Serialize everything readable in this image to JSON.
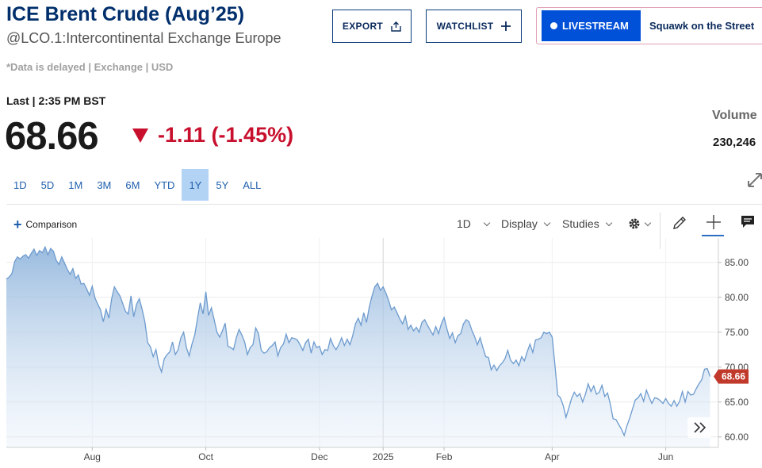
{
  "header": {
    "title": "ICE Brent Crude (Aug’25)",
    "subtitle": "@LCO.1:Intercontinental Exchange Europe",
    "delayed_note": "*Data is delayed | Exchange | USD"
  },
  "actions": {
    "export_label": "EXPORT",
    "watchlist_label": "WATCHLIST",
    "livestream_label": "LIVESTREAM",
    "livestream_show": "Squawk on the Street"
  },
  "quote": {
    "last_label": "Last | 2:35 PM BST",
    "price": "68.66",
    "change": "-1.11 (-1.45%)",
    "volume_label": "Volume",
    "volume_value": "230,246"
  },
  "ranges": [
    "1D",
    "5D",
    "1M",
    "3M",
    "6M",
    "YTD",
    "1Y",
    "5Y",
    "ALL"
  ],
  "active_range": "1Y",
  "toolbar": {
    "comparison_label": "Comparison",
    "interval_label": "1D",
    "display_label": "Display",
    "studies_label": "Studies"
  },
  "colors": {
    "brand_navy": "#002f6c",
    "negative": "#c8102e",
    "line": "#6d9bce",
    "price_tag": "#c0392b"
  },
  "icons": [
    "upload-icon",
    "plus-icon",
    "gear-icon",
    "pencil-icon",
    "crosshair-icon",
    "comment-icon",
    "expand-icon",
    "double-chevron-right-icon"
  ],
  "chart_data": {
    "type": "area",
    "x_tick_labels": [
      "Aug",
      "Oct",
      "Dec",
      "2025",
      "Feb",
      "Apr",
      "Jun"
    ],
    "y_ticks": [
      60,
      65,
      70,
      75,
      80,
      85
    ],
    "y_tick_labels": [
      "60.00",
      "65.00",
      "70.00",
      "75.00",
      "80.00",
      "85.00"
    ],
    "ylim": [
      58.5,
      88.5
    ],
    "xlim": [
      0,
      257
    ],
    "x_tick_positions": [
      31,
      72,
      113,
      136,
      158,
      197,
      238
    ],
    "last_value": 68.66,
    "last_value_label": "68.66",
    "grid": true,
    "series": [
      {
        "values": [
          82.6,
          82.9,
          83.4,
          85.1,
          85.8,
          85.5,
          85.9,
          86.1,
          85.6,
          86.3,
          86.9,
          86.0,
          86.7,
          86.4,
          87.2,
          86.1,
          87.0,
          86.6,
          85.3,
          84.7,
          85.8,
          84.9,
          84.0,
          83.3,
          84.1,
          82.7,
          83.2,
          81.9,
          82.0,
          81.2,
          80.3,
          81.6,
          79.9,
          79.0,
          78.2,
          76.5,
          78.3,
          77.0,
          79.8,
          81.5,
          80.8,
          80.2,
          79.1,
          78.0,
          77.6,
          80.2,
          77.2,
          79.0,
          79.8,
          78.3,
          76.5,
          73.5,
          72.9,
          71.5,
          72.5,
          70.4,
          69.3,
          71.2,
          71.8,
          72.2,
          73.6,
          71.8,
          72.5,
          74.2,
          75.0,
          72.8,
          71.6,
          73.3,
          74.6,
          77.0,
          79.2,
          77.6,
          80.8,
          77.4,
          78.5,
          76.8,
          75.0,
          74.3,
          75.2,
          76.3,
          73.0,
          72.8,
          72.5,
          74.2,
          75.4,
          74.6,
          73.6,
          71.8,
          72.8,
          73.2,
          75.6,
          74.8,
          72.4,
          72.0,
          72.2,
          72.8,
          73.1,
          73.6,
          71.6,
          72.8,
          73.3,
          74.7,
          73.5,
          74.2,
          74.1,
          73.9,
          73.2,
          72.4,
          73.5,
          74.0,
          72.0,
          73.6,
          72.8,
          73.0,
          71.8,
          72.5,
          72.4,
          74.1,
          73.1,
          72.5,
          73.2,
          74.2,
          73.1,
          74.0,
          73.2,
          74.5,
          76.2,
          77.0,
          76.0,
          77.8,
          76.4,
          78.6,
          80.2,
          81.5,
          82.0,
          81.0,
          81.5,
          80.6,
          79.5,
          78.2,
          78.6,
          77.8,
          76.9,
          76.2,
          77.3,
          75.4,
          76.0,
          75.2,
          75.7,
          75.0,
          76.4,
          76.8,
          76.0,
          75.3,
          74.6,
          75.8,
          74.8,
          76.2,
          77.1,
          75.5,
          74.1,
          74.9,
          73.5,
          74.5,
          74.8,
          76.2,
          76.8,
          76.5,
          75.3,
          74.4,
          73.2,
          74.2,
          72.8,
          71.5,
          71.4,
          69.6,
          70.3,
          69.5,
          70.2,
          70.6,
          71.2,
          72.4,
          71.0,
          70.5,
          71.0,
          70.2,
          71.5,
          70.9,
          72.2,
          73.3,
          72.1,
          73.9,
          74.0,
          74.2,
          75.0,
          74.8,
          75.0,
          74.3,
          70.4,
          66.0,
          65.6,
          64.5,
          62.8,
          64.1,
          65.5,
          66.4,
          65.8,
          66.2,
          65.0,
          66.1,
          67.6,
          66.5,
          67.3,
          66.1,
          66.4,
          67.4,
          65.8,
          66.3,
          64.7,
          62.6,
          62.5,
          61.8,
          61.1,
          60.2,
          61.6,
          62.7,
          64.0,
          65.3,
          65.6,
          66.2,
          65.1,
          66.7,
          65.7,
          64.8,
          65.6,
          65.5,
          65.2,
          64.8,
          65.5,
          64.8,
          64.4,
          65.2,
          64.4,
          65.1,
          66.5,
          65.0,
          66.5,
          66.0,
          66.1,
          66.9,
          67.6,
          68.2,
          69.7,
          69.8,
          68.66
        ]
      }
    ]
  }
}
